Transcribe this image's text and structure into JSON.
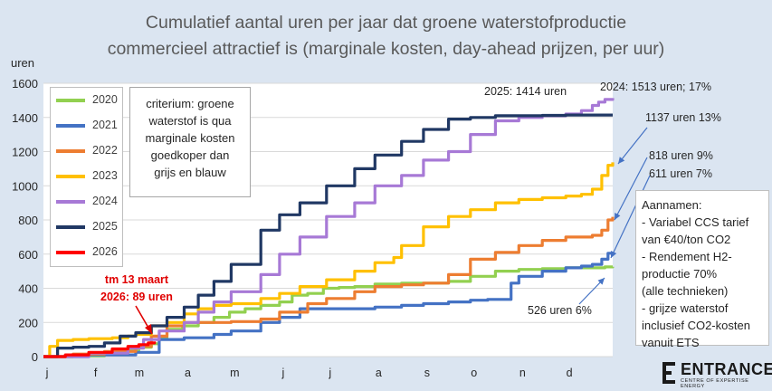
{
  "title_line1": "Cumulatief aantal uren per jaar dat groene waterstofproductie",
  "title_line2": "commercieel attractief is (marginale kosten, day-ahead prijzen, per uur)",
  "criterium_text": "criterium: groene\nwaterstof is qua\nmarginale kosten\ngoedkoper dan\ngrijs en blauw",
  "assumptions_text": "Aannamen:\n- Variabel CCS tarief\n  van €40/ton CO2\n- Rendement H2-\n  productie 70%\n  (alle technieken)\n- grijze waterstof\n  inclusief CO2-kosten\n  vanuit ETS",
  "annotations": {
    "a2025": "2025: 1414 uren",
    "a2024": "2024: 1513 uren; 17%",
    "a2023": "1137 uren  13%",
    "a2022": "818 uren 9%",
    "a2021": "611 uren 7%",
    "a2020": "526 uren  6%",
    "a2026_line1": "tm 13 maart",
    "a2026_line2": "2026: 89 uren"
  },
  "logo": {
    "name": "ENTRANCE",
    "tagline": "CENTRE OF EXPERTISE ENERGY"
  },
  "chart_data": {
    "type": "line",
    "title": "Cumulatief aantal uren per jaar dat groene waterstofproductie commercieel attractief is (marginale kosten, day-ahead prijzen, per uur)",
    "ylabel": "uren",
    "xlabel": "",
    "ylim": [
      0,
      1600
    ],
    "yticks": [
      0,
      200,
      400,
      600,
      800,
      1000,
      1200,
      1400,
      1600
    ],
    "xlim": [
      1,
      365
    ],
    "xtick_labels": [
      "j",
      "f",
      "m",
      "a",
      "m",
      "j",
      "j",
      "a",
      "s",
      "o",
      "n",
      "d"
    ],
    "xtick_days": [
      1,
      32,
      60,
      91,
      121,
      152,
      182,
      213,
      244,
      274,
      305,
      335
    ],
    "grid": "horizontal",
    "legend": "top-left",
    "series": [
      {
        "name": "2020",
        "color": "#92d050",
        "x": [
          1,
          20,
          40,
          55,
          62,
          70,
          75,
          80,
          90,
          100,
          110,
          120,
          130,
          140,
          152,
          160,
          170,
          180,
          190,
          200,
          213,
          230,
          244,
          260,
          274,
          290,
          305,
          320,
          335,
          345,
          355,
          360,
          365
        ],
        "y": [
          0,
          5,
          15,
          35,
          55,
          75,
          110,
          160,
          180,
          200,
          230,
          260,
          280,
          300,
          320,
          360,
          370,
          400,
          405,
          410,
          425,
          430,
          430,
          440,
          470,
          500,
          510,
          515,
          520,
          520,
          520,
          525,
          526
        ]
      },
      {
        "name": "2021",
        "color": "#4472c4",
        "x": [
          1,
          30,
          60,
          75,
          91,
          110,
          121,
          140,
          152,
          165,
          182,
          200,
          213,
          230,
          244,
          260,
          274,
          285,
          300,
          305,
          320,
          335,
          345,
          352,
          358,
          362,
          365
        ],
        "y": [
          0,
          10,
          25,
          100,
          110,
          130,
          150,
          200,
          230,
          280,
          280,
          280,
          290,
          300,
          310,
          320,
          330,
          335,
          430,
          470,
          500,
          520,
          530,
          540,
          570,
          605,
          611
        ]
      },
      {
        "name": "2022",
        "color": "#ed7d31",
        "x": [
          1,
          20,
          40,
          60,
          70,
          80,
          91,
          110,
          121,
          140,
          152,
          170,
          182,
          200,
          213,
          230,
          244,
          260,
          274,
          290,
          305,
          320,
          335,
          345,
          352,
          358,
          362,
          365
        ],
        "y": [
          0,
          15,
          30,
          60,
          120,
          180,
          200,
          200,
          205,
          220,
          260,
          310,
          340,
          380,
          410,
          420,
          430,
          480,
          570,
          610,
          650,
          680,
          700,
          700,
          710,
          740,
          800,
          818
        ]
      },
      {
        "name": "2023",
        "color": "#ffc000",
        "x": [
          1,
          5,
          10,
          20,
          30,
          45,
          55,
          60,
          70,
          80,
          91,
          100,
          110,
          121,
          140,
          152,
          165,
          182,
          200,
          213,
          225,
          230,
          244,
          260,
          274,
          290,
          305,
          320,
          335,
          345,
          352,
          358,
          362,
          365
        ],
        "y": [
          0,
          60,
          95,
          100,
          105,
          110,
          120,
          130,
          180,
          200,
          250,
          280,
          300,
          310,
          340,
          370,
          410,
          450,
          500,
          550,
          580,
          650,
          760,
          820,
          860,
          900,
          920,
          930,
          940,
          950,
          980,
          1060,
          1120,
          1137
        ]
      },
      {
        "name": "2024",
        "color": "#a779d6",
        "x": [
          1,
          30,
          55,
          65,
          75,
          91,
          100,
          110,
          121,
          140,
          152,
          165,
          182,
          200,
          213,
          230,
          244,
          260,
          274,
          290,
          305,
          320,
          335,
          345,
          352,
          356,
          360,
          365
        ],
        "y": [
          0,
          20,
          50,
          100,
          150,
          200,
          260,
          320,
          380,
          480,
          600,
          700,
          820,
          900,
          1000,
          1060,
          1150,
          1200,
          1300,
          1380,
          1400,
          1410,
          1420,
          1440,
          1470,
          1490,
          1505,
          1513
        ]
      },
      {
        "name": "2025",
        "color": "#203864",
        "x": [
          1,
          10,
          20,
          30,
          40,
          50,
          60,
          70,
          80,
          91,
          100,
          110,
          121,
          140,
          152,
          165,
          182,
          200,
          213,
          230,
          244,
          260,
          274,
          290,
          305,
          320,
          335,
          350,
          365
        ],
        "y": [
          0,
          50,
          55,
          60,
          80,
          120,
          140,
          180,
          230,
          290,
          360,
          440,
          540,
          740,
          830,
          900,
          1000,
          1100,
          1180,
          1260,
          1330,
          1390,
          1400,
          1410,
          1410,
          1412,
          1414,
          1414,
          1414
        ]
      },
      {
        "name": "2026",
        "color": "#ff0000",
        "x": [
          1,
          15,
          30,
          45,
          55,
          62,
          68,
          72
        ],
        "y": [
          0,
          10,
          25,
          45,
          60,
          70,
          80,
          89
        ]
      }
    ]
  }
}
